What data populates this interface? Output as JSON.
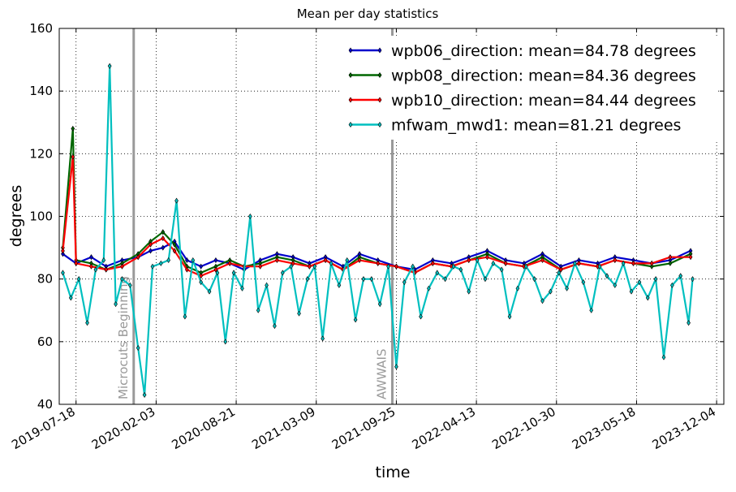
{
  "chart_data": {
    "type": "line",
    "title": "Mean per day statistics",
    "xlabel": "time",
    "ylabel": "degrees",
    "ylim": [
      40,
      160
    ],
    "xlim": [
      "2019-06-06",
      "2023-12-22"
    ],
    "grid": true,
    "legend_position": "top-right",
    "y_ticks": [
      40,
      60,
      80,
      100,
      120,
      140,
      160
    ],
    "x_ticks": [
      "2019-07-18",
      "2020-02-03",
      "2020-08-21",
      "2021-03-09",
      "2021-09-25",
      "2022-04-13",
      "2022-10-30",
      "2023-05-18",
      "2023-12-04"
    ],
    "annotations": [
      {
        "date": "2019-12-09",
        "text": "Microcuts Beginning",
        "color": "#999999"
      },
      {
        "date": "2021-09-15",
        "text": "AWWAIS",
        "color": "#999999"
      }
    ],
    "series": [
      {
        "name": "wpb06_direction: mean=84.78 degrees",
        "color": "#0000cc",
        "x": [
          "2019-06-15",
          "2019-07-18",
          "2019-08-25",
          "2019-10-01",
          "2019-11-10",
          "2019-12-20",
          "2020-01-20",
          "2020-02-20",
          "2020-03-20",
          "2020-04-20",
          "2020-05-25",
          "2020-07-01",
          "2020-08-05",
          "2020-09-10",
          "2020-10-20",
          "2020-12-01",
          "2021-01-10",
          "2021-02-20",
          "2021-04-01",
          "2021-05-15",
          "2021-06-25",
          "2021-08-10",
          "2021-09-25",
          "2021-11-10",
          "2021-12-25",
          "2022-02-10",
          "2022-03-25",
          "2022-05-10",
          "2022-06-25",
          "2022-08-10",
          "2022-09-25",
          "2022-11-10",
          "2022-12-25",
          "2023-02-10",
          "2023-03-25",
          "2023-05-10",
          "2023-06-25",
          "2023-08-10",
          "2023-09-30"
        ],
        "values": [
          88,
          85,
          87,
          84,
          86,
          87,
          89,
          90,
          92,
          86,
          84,
          86,
          85,
          83,
          86,
          88,
          87,
          85,
          87,
          84,
          88,
          86,
          84,
          83,
          86,
          85,
          87,
          89,
          86,
          85,
          88,
          84,
          86,
          85,
          87,
          86,
          85,
          86,
          89
        ]
      },
      {
        "name": "wpb08_direction: mean=84.36 degrees",
        "color": "#006600",
        "x": [
          "2019-06-15",
          "2019-07-10",
          "2019-07-18",
          "2019-08-25",
          "2019-10-01",
          "2019-11-10",
          "2019-12-20",
          "2020-01-20",
          "2020-02-20",
          "2020-03-20",
          "2020-04-20",
          "2020-05-25",
          "2020-07-01",
          "2020-08-05",
          "2020-09-10",
          "2020-10-20",
          "2020-12-01",
          "2021-01-10",
          "2021-02-20",
          "2021-04-01",
          "2021-05-15",
          "2021-06-25",
          "2021-08-10",
          "2021-09-25",
          "2021-11-10",
          "2021-12-25",
          "2022-02-10",
          "2022-03-25",
          "2022-05-10",
          "2022-06-25",
          "2022-08-10",
          "2022-09-25",
          "2022-11-10",
          "2022-12-25",
          "2023-02-10",
          "2023-03-25",
          "2023-05-10",
          "2023-06-25",
          "2023-08-10",
          "2023-09-30"
        ],
        "values": [
          90,
          128,
          86,
          85,
          83,
          85,
          88,
          92,
          95,
          91,
          84,
          82,
          84,
          86,
          84,
          85,
          87,
          86,
          84,
          86,
          83,
          87,
          85,
          84,
          82,
          85,
          84,
          86,
          88,
          85,
          84,
          87,
          83,
          85,
          84,
          86,
          85,
          84,
          85,
          88
        ]
      },
      {
        "name": "wpb10_direction: mean=84.44 degrees",
        "color": "#ff0000",
        "x": [
          "2019-06-15",
          "2019-07-10",
          "2019-07-18",
          "2019-08-25",
          "2019-10-01",
          "2019-11-10",
          "2019-12-20",
          "2020-01-20",
          "2020-02-20",
          "2020-03-20",
          "2020-04-20",
          "2020-05-25",
          "2020-07-01",
          "2020-08-05",
          "2020-09-10",
          "2020-10-20",
          "2020-12-01",
          "2021-01-10",
          "2021-02-20",
          "2021-04-01",
          "2021-05-15",
          "2021-06-25",
          "2021-08-10",
          "2021-09-25",
          "2021-11-10",
          "2021-12-25",
          "2022-02-10",
          "2022-03-25",
          "2022-05-10",
          "2022-06-25",
          "2022-08-10",
          "2022-09-25",
          "2022-11-10",
          "2022-12-25",
          "2023-02-10",
          "2023-03-25",
          "2023-05-10",
          "2023-06-25",
          "2023-08-10",
          "2023-09-30"
        ],
        "values": [
          89,
          119,
          85,
          84,
          83,
          84,
          87,
          91,
          93,
          89,
          83,
          81,
          83,
          85,
          84,
          84,
          86,
          85,
          84,
          86,
          83,
          86,
          85,
          84,
          82,
          85,
          84,
          86,
          87,
          85,
          84,
          86,
          83,
          85,
          84,
          86,
          85,
          85,
          87,
          87
        ]
      },
      {
        "name": "mfwam_mwd1: mean=81.21 degrees",
        "color": "#00bfbf",
        "x": [
          "2019-06-15",
          "2019-07-05",
          "2019-07-25",
          "2019-08-15",
          "2019-09-05",
          "2019-09-25",
          "2019-10-10",
          "2019-10-25",
          "2019-11-10",
          "2019-11-30",
          "2019-12-20",
          "2020-01-05",
          "2020-01-25",
          "2020-02-15",
          "2020-03-05",
          "2020-03-25",
          "2020-04-15",
          "2020-05-05",
          "2020-05-25",
          "2020-06-15",
          "2020-07-05",
          "2020-07-25",
          "2020-08-15",
          "2020-09-05",
          "2020-09-25",
          "2020-10-15",
          "2020-11-05",
          "2020-11-25",
          "2020-12-15",
          "2021-01-05",
          "2021-01-25",
          "2021-02-15",
          "2021-03-05",
          "2021-03-25",
          "2021-04-15",
          "2021-05-05",
          "2021-05-25",
          "2021-06-15",
          "2021-07-05",
          "2021-07-25",
          "2021-08-15",
          "2021-09-05",
          "2021-09-25",
          "2021-10-15",
          "2021-11-05",
          "2021-11-25",
          "2021-12-15",
          "2022-01-05",
          "2022-01-25",
          "2022-02-15",
          "2022-03-05",
          "2022-03-25",
          "2022-04-15",
          "2022-05-05",
          "2022-05-25",
          "2022-06-15",
          "2022-07-05",
          "2022-07-25",
          "2022-08-15",
          "2022-09-05",
          "2022-09-25",
          "2022-10-15",
          "2022-11-05",
          "2022-11-25",
          "2022-12-15",
          "2023-01-05",
          "2023-01-25",
          "2023-02-15",
          "2023-03-05",
          "2023-03-25",
          "2023-04-15",
          "2023-05-05",
          "2023-05-25",
          "2023-06-15",
          "2023-07-05",
          "2023-07-25",
          "2023-08-15",
          "2023-09-05",
          "2023-09-25",
          "2023-10-05"
        ],
        "values": [
          82,
          74,
          80,
          66,
          83,
          86,
          148,
          72,
          80,
          78,
          58,
          43,
          84,
          85,
          86,
          105,
          68,
          86,
          79,
          76,
          82,
          60,
          82,
          77,
          100,
          70,
          78,
          65,
          82,
          84,
          69,
          80,
          84,
          61,
          85,
          78,
          86,
          67,
          80,
          80,
          72,
          84,
          52,
          79,
          84,
          68,
          77,
          82,
          80,
          84,
          83,
          76,
          86,
          80,
          85,
          83,
          68,
          77,
          84,
          80,
          73,
          76,
          82,
          77,
          85,
          79,
          70,
          84,
          81,
          78,
          85,
          76,
          79,
          74,
          80,
          55,
          78,
          81,
          66,
          80
        ]
      }
    ]
  }
}
